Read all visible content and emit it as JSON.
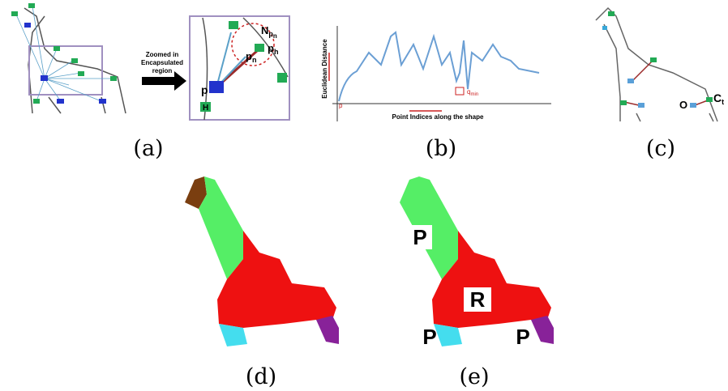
{
  "panel_a": {
    "caption": "(a)",
    "arrow_text": [
      "Zoomed in",
      "Encapsulated",
      "region"
    ],
    "labels": {
      "Np": {
        "main": "N",
        "sub": "p",
        "subsub": "n"
      },
      "pn": {
        "main": "p",
        "sub": "n"
      },
      "ph": {
        "main": "p",
        "sub": "h"
      },
      "p": "p",
      "H": "H"
    }
  },
  "panel_b": {
    "caption": "(b)",
    "y_label": "Euclidean Distance",
    "x_label": "Point Indices along the shape",
    "origin": "p",
    "qmin": {
      "main": "q",
      "sub": "min"
    }
  },
  "panel_c": {
    "caption": "(c)",
    "O": "O",
    "Ct": {
      "main": "C",
      "sub": "t"
    }
  },
  "panel_d": {
    "caption": "(d)"
  },
  "panel_e": {
    "caption": "(e)",
    "parts": [
      "P",
      "R",
      "P",
      "P"
    ]
  }
}
